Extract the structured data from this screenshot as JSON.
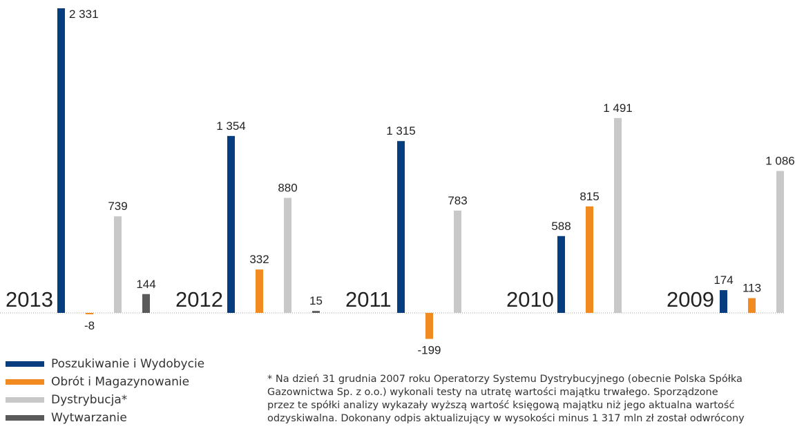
{
  "chart_data": {
    "type": "bar",
    "groups": [
      "2013",
      "2012",
      "2011",
      "2010",
      "2009"
    ],
    "series": [
      {
        "name": "Poszukiwanie i Wydobycie",
        "color": "#063d7f",
        "values": [
          2331,
          1354,
          1315,
          588,
          174
        ],
        "labels": [
          "2 331",
          "1 354",
          "1 315",
          "588",
          "174"
        ]
      },
      {
        "name": "Obrót i Magazynowanie",
        "color": "#f18a21",
        "values": [
          -8,
          332,
          -199,
          815,
          113
        ],
        "labels": [
          "-8",
          "332",
          "-199",
          "815",
          "113"
        ]
      },
      {
        "name": "Dystrybucja*",
        "color": "#c8c8c8",
        "values": [
          739,
          880,
          783,
          1491,
          1086
        ],
        "labels": [
          "739",
          "880",
          "783",
          "1 491",
          "1 086"
        ]
      },
      {
        "name": "Wytwarzanie",
        "color": "#5a5a5a",
        "values": [
          144,
          15,
          null,
          null,
          null
        ],
        "labels": [
          "144",
          "15",
          "",
          "",
          ""
        ]
      }
    ],
    "baseline_style": "dotted",
    "legend_position": "bottom-left"
  },
  "footnote": "* Na dzień 31 grudnia 2007 roku Operatorzy Systemu Dystrybucyjnego (obecnie Polska Spółka\n  Gazownictwa Sp. z o.o.) wykonali testy na utratę wartości majątku trwałego. Sporządzone\n  przez te spółki analizy wykazały wyższą wartość księgową majątku niż jego aktualna wartość\n  odzyskiwalna. Dokonany odpis aktualizujący w wysokości minus 1 317 mln zł został odwrócony"
}
